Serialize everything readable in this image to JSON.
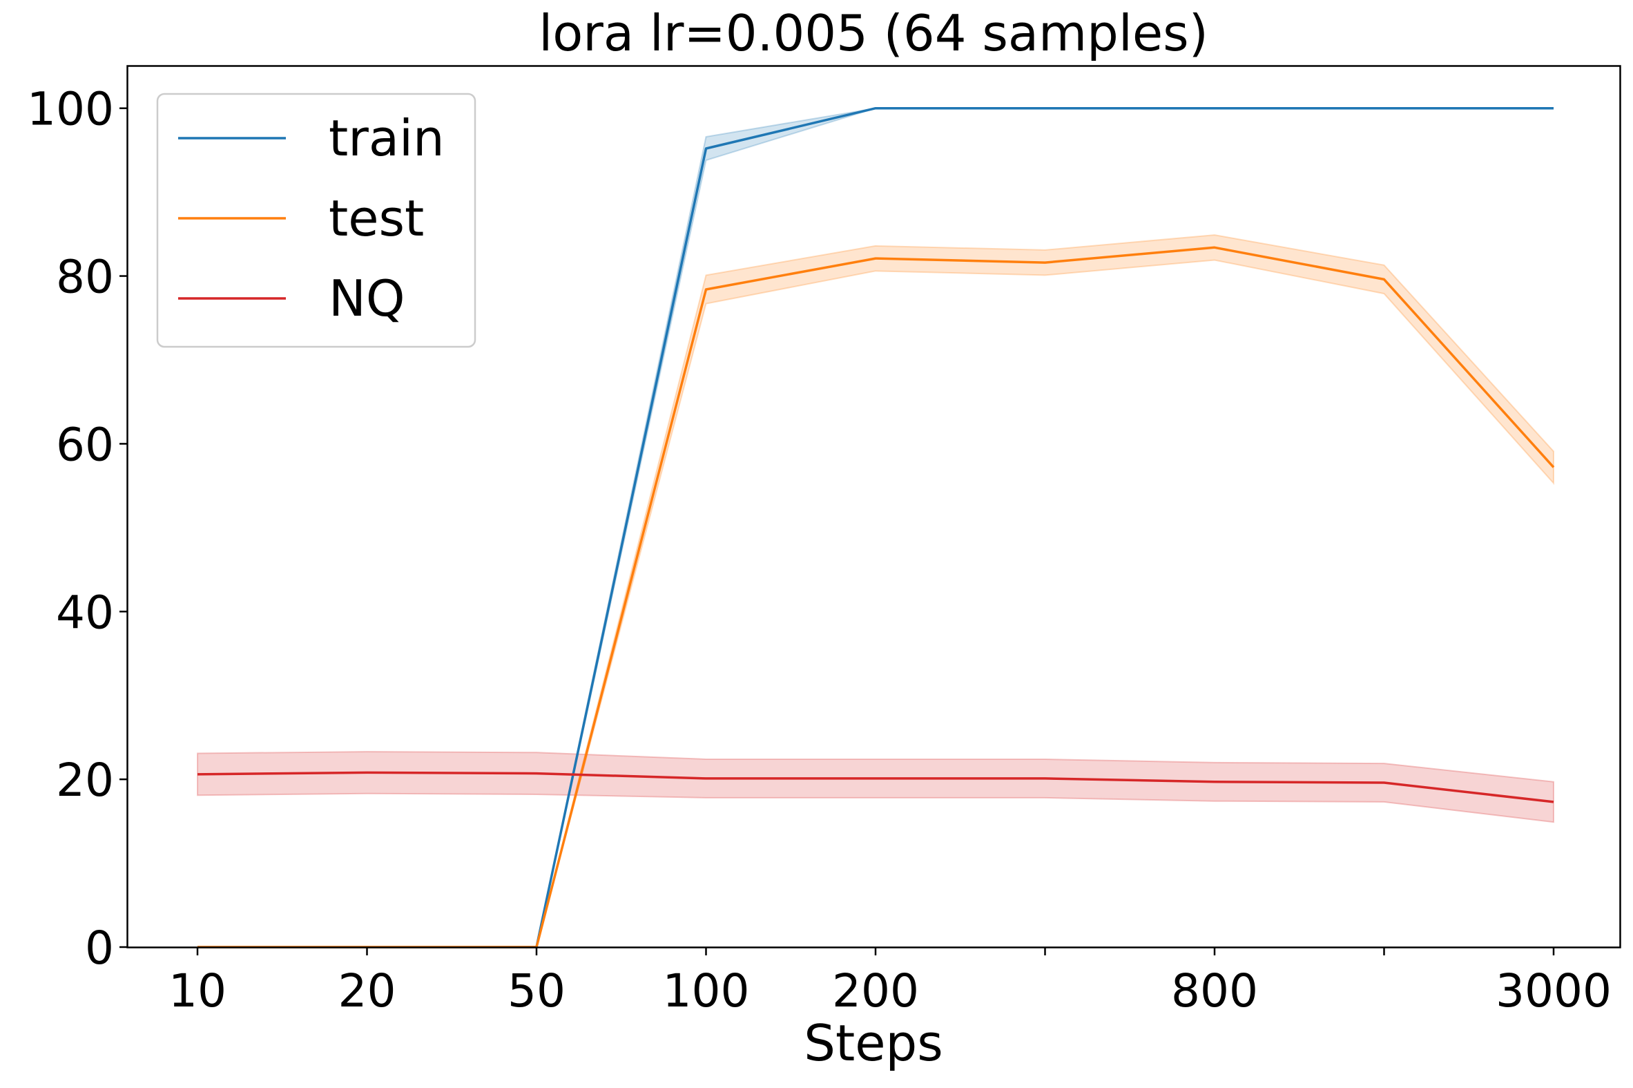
{
  "chart_data": {
    "type": "line",
    "title": "lora lr=0.005  (64 samples)",
    "xlabel": "Steps",
    "ylabel": "",
    "ylim": [
      0,
      105
    ],
    "yticks": [
      0,
      20,
      40,
      60,
      80,
      100
    ],
    "x_positions": [
      10,
      20,
      50,
      100,
      200,
      400,
      800,
      1600,
      3000
    ],
    "x_tick_labels": [
      "10",
      "20",
      "50",
      "100",
      "200",
      "",
      "800",
      "",
      "3000"
    ],
    "grid": false,
    "legend_position": "top-left",
    "series": [
      {
        "name": "train",
        "color": "#1f77b4",
        "values": [
          0,
          0,
          0,
          95.2,
          100,
          100,
          100,
          100,
          100
        ],
        "lower": [
          0,
          0,
          0,
          93.8,
          100,
          100,
          100,
          100,
          100
        ],
        "upper": [
          0,
          0,
          0,
          96.6,
          100,
          100,
          100,
          100,
          100
        ]
      },
      {
        "name": "test",
        "color": "#ff7f0e",
        "values": [
          0,
          0,
          0,
          78.4,
          82.1,
          81.6,
          83.4,
          79.6,
          57.2
        ],
        "lower": [
          0,
          0,
          0,
          76.7,
          80.6,
          80.1,
          81.9,
          77.9,
          55.3
        ],
        "upper": [
          0,
          0,
          0,
          80.1,
          83.6,
          83.1,
          84.9,
          81.3,
          59.1
        ]
      },
      {
        "name": "NQ",
        "color": "#d62728",
        "values": [
          20.6,
          20.8,
          20.7,
          20.1,
          20.1,
          20.1,
          19.7,
          19.6,
          17.3
        ],
        "lower": [
          18.1,
          18.3,
          18.2,
          17.8,
          17.8,
          17.8,
          17.4,
          17.3,
          14.9
        ],
        "upper": [
          23.1,
          23.3,
          23.2,
          22.4,
          22.4,
          22.4,
          22.0,
          21.9,
          19.7
        ]
      }
    ]
  }
}
